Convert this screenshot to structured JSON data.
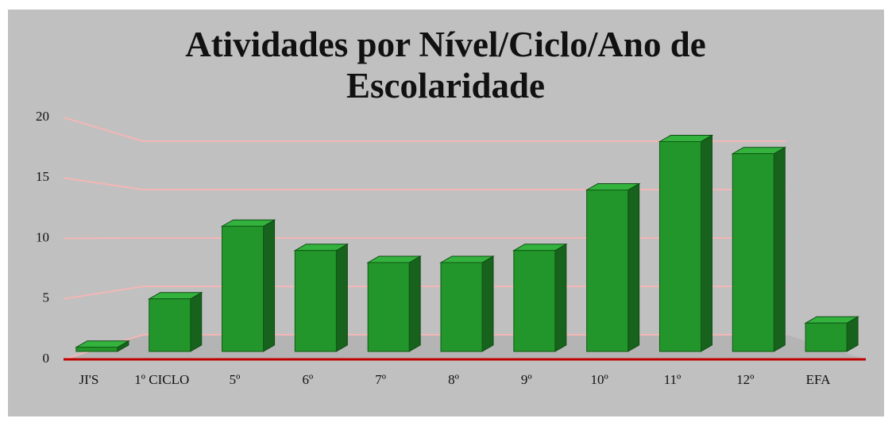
{
  "chart_data": {
    "type": "bar3d",
    "title": "Atividades por Nível/Ciclo/Ano de Escolaridade",
    "categories": [
      "JI'S",
      "1º CICLO",
      "5º",
      "6º",
      "7º",
      "8º",
      "9º",
      "10º",
      "11º",
      "12º",
      "EFA"
    ],
    "values": [
      1,
      5,
      11,
      9,
      8,
      8,
      9,
      14,
      18,
      17,
      3
    ],
    "color": "#23962b",
    "ylim": [
      0,
      20
    ],
    "yticks": [
      0,
      5,
      10,
      15,
      20
    ],
    "grid": true
  }
}
